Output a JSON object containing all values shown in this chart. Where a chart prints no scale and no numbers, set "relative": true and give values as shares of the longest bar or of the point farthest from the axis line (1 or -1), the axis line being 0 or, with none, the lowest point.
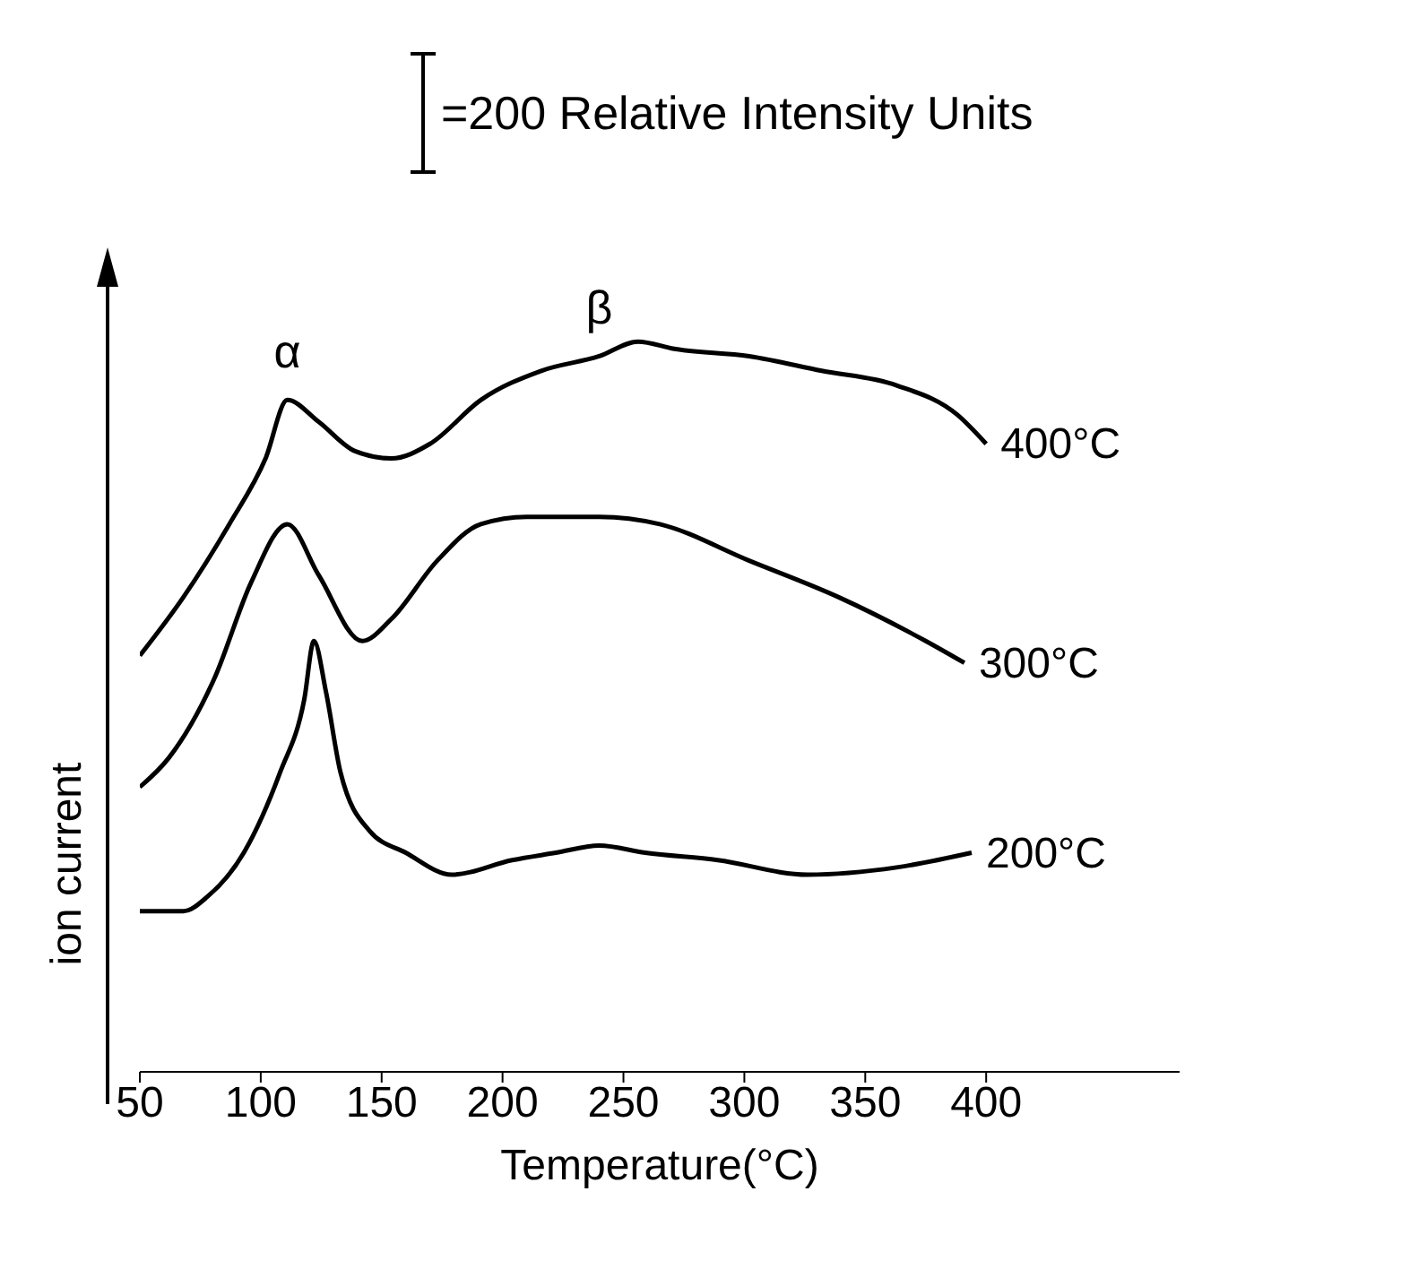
{
  "chart_data": {
    "type": "line",
    "relative": true,
    "xlabel": "Temperature(°C)",
    "ylabel": "ion current",
    "xlim": [
      50,
      480
    ],
    "xticks": [
      50,
      100,
      150,
      200,
      250,
      300,
      350,
      400
    ],
    "grid": false,
    "legend": false,
    "marker": "none",
    "line_style": "solid",
    "annotations": [
      "=200 Relative Intensity Units",
      {
        "text": "α",
        "x": 111,
        "y": 0.92
      },
      {
        "text": "β",
        "x": 240,
        "y": 0.98
      }
    ],
    "series": [
      {
        "name": "400°C",
        "color": "#000000",
        "x": [
          50,
          68,
          87,
          102,
          111,
          124,
          139,
          154,
          170,
          191,
          216,
          240,
          256,
          271,
          302,
          332,
          363,
          388,
          400
        ],
        "values": [
          0.57,
          0.65,
          0.75,
          0.84,
          0.92,
          0.89,
          0.85,
          0.84,
          0.86,
          0.92,
          0.96,
          0.98,
          1.0,
          0.99,
          0.98,
          0.96,
          0.94,
          0.9,
          0.86
        ]
      },
      {
        "name": "300°C",
        "color": "#000000",
        "x": [
          50,
          62,
          81,
          96,
          111,
          124,
          142,
          154,
          173,
          191,
          210,
          240,
          265,
          302,
          339,
          375,
          391
        ],
        "values": [
          0.39,
          0.43,
          0.54,
          0.67,
          0.75,
          0.68,
          0.59,
          0.62,
          0.7,
          0.75,
          0.76,
          0.76,
          0.75,
          0.7,
          0.65,
          0.59,
          0.56
        ]
      },
      {
        "name": "200°C",
        "color": "#000000",
        "x": [
          50,
          68,
          78,
          93,
          108,
          118,
          122,
          127,
          133,
          145,
          160,
          179,
          204,
          222,
          240,
          259,
          289,
          326,
          363,
          394
        ],
        "values": [
          0.22,
          0.22,
          0.24,
          0.3,
          0.41,
          0.51,
          0.59,
          0.52,
          0.41,
          0.33,
          0.3,
          0.27,
          0.29,
          0.3,
          0.31,
          0.3,
          0.29,
          0.27,
          0.28,
          0.3
        ]
      }
    ]
  }
}
